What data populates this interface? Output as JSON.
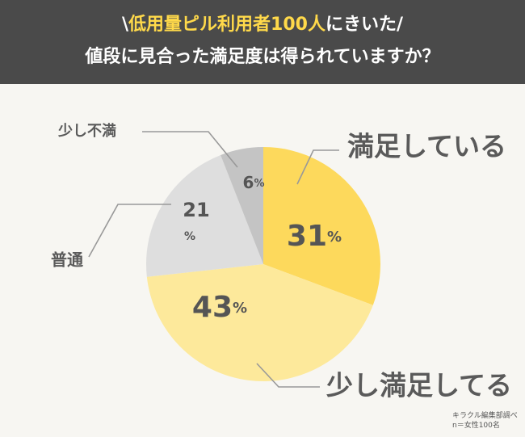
{
  "header": {
    "slash_left": "\\",
    "highlight": "低用量ピル利用者100人",
    "line1_rest": "にきいた",
    "slash_right": "/",
    "line2": "値段に見合った満足度は得られていますか？"
  },
  "chart_data": {
    "type": "pie",
    "title": "",
    "slices": [
      {
        "label": "満足している",
        "value": 31,
        "value_text": "31",
        "unit": "%",
        "color": "#fdd95c"
      },
      {
        "label": "少し満足してる",
        "value": 43,
        "value_text": "43",
        "unit": "%",
        "color": "#fde99b"
      },
      {
        "label": "普通",
        "value": 21,
        "value_text": "21",
        "unit": "%",
        "color": "#dedede"
      },
      {
        "label": "少し不満",
        "value": 6,
        "value_text": "6",
        "unit": "%",
        "color": "#c4c4c4"
      }
    ]
  },
  "credit": {
    "source": "キラクル編集部調べ",
    "sample": "n＝女性100名"
  },
  "colors": {
    "header_bg": "#4a4a4a",
    "highlight": "#ffd94a",
    "background": "#f7f6f2",
    "value_text": "#555555",
    "label_text": "#5a5a5a",
    "leader_line": "#999999"
  }
}
